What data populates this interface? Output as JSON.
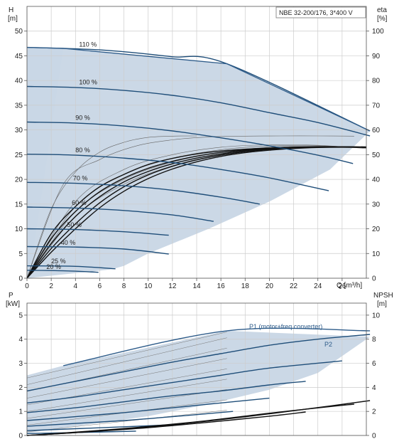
{
  "chart_data": [
    {
      "type": "line",
      "title": "NBE 32-200/176, 3*400 V",
      "ylabel_left": "H",
      "ylabel_left_unit": "[m]",
      "ylabel_right": "eta",
      "ylabel_right_unit": "[%]",
      "xlabel": "Q [m³/h]",
      "xlim": [
        0,
        28
      ],
      "ylim_left": [
        0,
        55
      ],
      "ylim_right": [
        0,
        110
      ],
      "x_ticks": [
        "0",
        "2",
        "4",
        "6",
        "8",
        "10",
        "12",
        "14",
        "16",
        "18",
        "20",
        "22",
        "24",
        "26"
      ],
      "y_ticks_left": [
        "0",
        "5",
        "10",
        "15",
        "20",
        "25",
        "30",
        "35",
        "40",
        "45",
        "50"
      ],
      "y_ticks_right": [
        "0",
        "10",
        "20",
        "30",
        "40",
        "50",
        "60",
        "70",
        "80",
        "90",
        "100"
      ],
      "grid": true,
      "envelope_H": [
        [
          0,
          46.7
        ],
        [
          3,
          46.5
        ],
        [
          16.5,
          43.4
        ],
        [
          28.3,
          29.8
        ],
        [
          25,
          22
        ],
        [
          20,
          15.5
        ],
        [
          15,
          10
        ],
        [
          10,
          5
        ],
        [
          8,
          2.5
        ],
        [
          7,
          1.8
        ],
        [
          0,
          0
        ]
      ],
      "series": [
        {
          "name": "110 %",
          "x": [
            0,
            3,
            6,
            9,
            12,
            16.5,
            28.3
          ],
          "y": [
            46.7,
            46.5,
            46.2,
            45.6,
            44.8,
            43.4,
            29.8
          ]
        },
        {
          "name": "100 %",
          "x": [
            0,
            4,
            8,
            12,
            16,
            20,
            24,
            28.3
          ],
          "y": [
            38.8,
            38.6,
            38,
            37,
            35.5,
            33.5,
            31.5,
            28.8
          ]
        },
        {
          "name": "90 %",
          "x": [
            0,
            4,
            8,
            12,
            16,
            20,
            24,
            26.9
          ],
          "y": [
            31.6,
            31.4,
            30.8,
            29.8,
            28.4,
            26.8,
            24.9,
            23.2
          ]
        },
        {
          "name": "80 %",
          "x": [
            0,
            4,
            8,
            12,
            16,
            20,
            24.9
          ],
          "y": [
            25.1,
            24.9,
            24.3,
            23.4,
            22,
            20.3,
            17.7
          ]
        },
        {
          "name": "70 %",
          "x": [
            0,
            4,
            8,
            12,
            16,
            19.2
          ],
          "y": [
            19.4,
            19.2,
            18.7,
            17.8,
            16.4,
            15
          ]
        },
        {
          "name": "60 %",
          "x": [
            0,
            4,
            8,
            12,
            15.4
          ],
          "y": [
            14.4,
            14.2,
            13.7,
            12.8,
            11.5
          ]
        },
        {
          "name": "50 %",
          "x": [
            0,
            4,
            8,
            11.7
          ],
          "y": [
            10,
            9.85,
            9.4,
            8.7
          ]
        },
        {
          "name": "40 %",
          "x": [
            0,
            4,
            8,
            11.7
          ],
          "y": [
            6.4,
            6.3,
            5.9,
            4.9
          ]
        },
        {
          "name": "25 %",
          "x": [
            0,
            4,
            7.3
          ],
          "y": [
            2.5,
            2.4,
            1.9
          ]
        },
        {
          "name": "20 %",
          "x": [
            0,
            3,
            5.9
          ],
          "y": [
            1.6,
            1.5,
            1.2
          ]
        }
      ],
      "efficiency_curves": [
        {
          "x": [
            0,
            4,
            8,
            12,
            16,
            20,
            24,
            28
          ],
          "eta": [
            0,
            25,
            38,
            45.5,
            50,
            52.3,
            53,
            53
          ]
        },
        {
          "x": [
            0,
            4,
            8,
            12,
            16,
            20,
            24,
            28
          ],
          "eta": [
            0,
            27,
            40,
            47,
            51,
            53,
            53.4,
            53
          ]
        },
        {
          "x": [
            0,
            4,
            8,
            12,
            16,
            20,
            24,
            28
          ],
          "eta": [
            0,
            29,
            42,
            48.5,
            52,
            53.5,
            53.6,
            52.8
          ]
        },
        {
          "x": [
            0,
            4,
            8,
            12,
            16,
            20,
            24,
            28
          ],
          "eta": [
            0,
            31,
            44,
            50,
            53,
            54,
            53.8,
            52.5
          ]
        },
        {
          "x": [
            0,
            3,
            6,
            9,
            12,
            15,
            18,
            21,
            24,
            27
          ],
          "eta": [
            0,
            38,
            48,
            53.5,
            56,
            57.2,
            57.5,
            57.6,
            57.6,
            57.5
          ]
        },
        {
          "x": [
            0,
            2,
            4,
            6,
            8,
            10,
            12,
            14
          ],
          "eta": [
            0,
            28,
            43,
            51,
            55,
            57,
            57.5,
            57.6
          ]
        }
      ]
    },
    {
      "type": "line",
      "ylabel_left": "P",
      "ylabel_left_unit": "[kW]",
      "ylabel_right": "NPSH",
      "ylabel_right_unit": "[m]",
      "xlim": [
        0,
        28
      ],
      "ylim_left": [
        0,
        5.5
      ],
      "ylim_right": [
        0,
        11
      ],
      "y_ticks_left": [
        "0",
        "1",
        "2",
        "3",
        "4",
        "5"
      ],
      "y_ticks_right": [
        "0",
        "2",
        "4",
        "6",
        "8",
        "10"
      ],
      "grid": true,
      "envelope_P": [
        [
          0,
          2.5
        ],
        [
          3,
          2.9
        ],
        [
          16.5,
          4.35
        ],
        [
          28.3,
          4.1
        ],
        [
          24,
          2.6
        ],
        [
          20,
          1.9
        ],
        [
          15,
          1.3
        ],
        [
          10,
          0.8
        ],
        [
          5,
          0.45
        ],
        [
          0,
          0.1
        ]
      ],
      "series": [
        {
          "name": "P1 (motor+freq.converter)",
          "x": [
            3,
            16.5,
            28.3
          ],
          "y": [
            2.9,
            4.35,
            4.35
          ]
        },
        {
          "name": "P2",
          "x": [
            0,
            4,
            8,
            12,
            16,
            20,
            24,
            28.3
          ],
          "y": [
            1.85,
            2.25,
            2.65,
            3.05,
            3.4,
            3.75,
            4.0,
            4.2
          ]
        },
        {
          "name": "",
          "x": [
            0,
            4,
            8,
            12,
            16,
            20,
            26
          ],
          "y": [
            1.35,
            1.6,
            1.9,
            2.2,
            2.5,
            2.8,
            3.1
          ]
        },
        {
          "name": "",
          "x": [
            0,
            4,
            8,
            12,
            16,
            20,
            23
          ],
          "y": [
            0.95,
            1.15,
            1.4,
            1.65,
            1.85,
            2.1,
            2.25
          ]
        },
        {
          "name": "",
          "x": [
            0,
            4,
            8,
            12,
            16,
            20
          ],
          "y": [
            0.62,
            0.78,
            0.95,
            1.15,
            1.35,
            1.55
          ]
        },
        {
          "name": "",
          "x": [
            0,
            4,
            8,
            12,
            17
          ],
          "y": [
            0.38,
            0.5,
            0.62,
            0.78,
            1.0
          ]
        },
        {
          "name": "",
          "x": [
            0,
            4,
            8,
            13
          ],
          "y": [
            0.2,
            0.28,
            0.36,
            0.47
          ]
        },
        {
          "name": "",
          "x": [
            0,
            4,
            9
          ],
          "y": [
            0.08,
            0.12,
            0.18
          ]
        }
      ],
      "npsh_curves": [
        {
          "x": [
            0,
            5,
            10,
            15,
            20,
            25,
            28.3
          ],
          "npsh": [
            0,
            0.3,
            0.7,
            1.2,
            1.8,
            2.45,
            2.9
          ]
        },
        {
          "x": [
            0,
            5,
            10,
            15,
            20,
            25,
            27
          ],
          "npsh": [
            0,
            0.35,
            0.75,
            1.25,
            1.85,
            2.4,
            2.6
          ]
        },
        {
          "x": [
            0,
            5,
            10,
            15,
            20,
            23
          ],
          "npsh": [
            0,
            0.3,
            0.65,
            1.1,
            1.6,
            1.95
          ]
        }
      ]
    }
  ],
  "colors": {
    "envelope_fill": "#c5d4e3",
    "envelope_edge": "#2e5c8a",
    "pump_curve": "#1f4e79",
    "eff_curve": "#666666",
    "bold_curve": "#111111",
    "grid": "#cccccc",
    "pale_band": "#eaf2fa"
  }
}
